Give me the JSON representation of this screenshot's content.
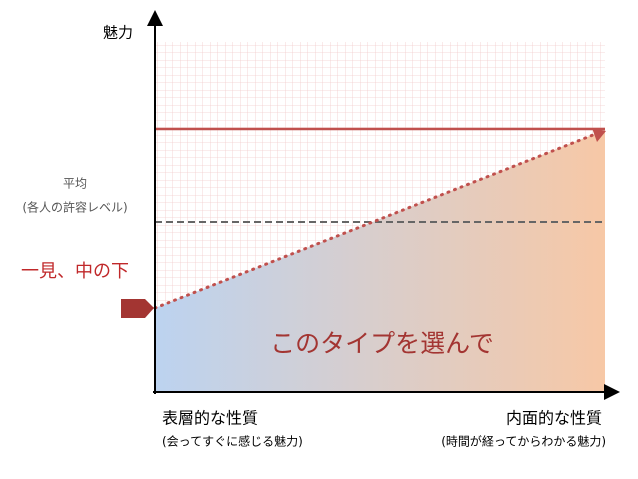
{
  "axis": {
    "y_label": "魅力"
  },
  "average": {
    "label": "平均",
    "sub_label": "(各人の許容レベル)"
  },
  "marker": {
    "label": "一見、中の下"
  },
  "callout": "このタイプを選んで",
  "x_left": {
    "label": "表層的な性質",
    "sub_label": "(会ってすぐに感じる魅力)"
  },
  "x_right": {
    "label": "内面的な性質",
    "sub_label": "(時間が経ってからわかる魅力)"
  }
}
